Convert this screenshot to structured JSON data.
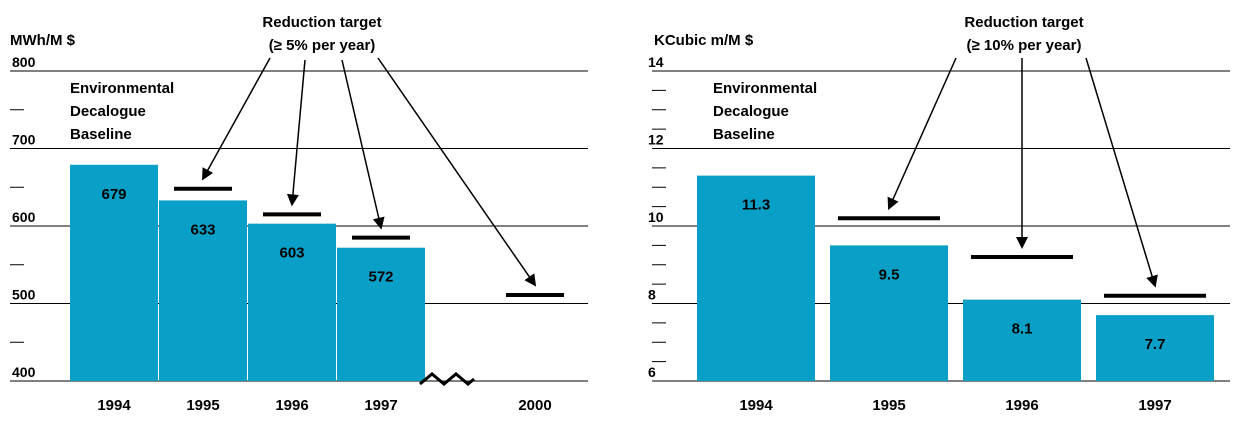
{
  "colors": {
    "bar": "#0a9fc7",
    "line": "#000000",
    "background": "#ffffff"
  },
  "chart_data": [
    {
      "type": "bar",
      "ylabel": "MWh/M $",
      "ylim": [
        400,
        800
      ],
      "yticks": [
        "800",
        "700",
        "600",
        "500",
        "400"
      ],
      "categories": [
        "1994",
        "1995",
        "1996",
        "1997",
        "2000"
      ],
      "values": [
        679,
        633,
        603,
        572,
        null
      ],
      "value_labels": [
        "679",
        "633",
        "603",
        "572",
        ""
      ],
      "targets": [
        null,
        648,
        615,
        585,
        511
      ],
      "baseline_label": [
        "Environmental",
        "Decalogue",
        "Baseline"
      ],
      "annotation": {
        "line1": "Reduction target",
        "line2": "(≥ 5% per year)"
      },
      "axis_break": "between 1997 and 2000",
      "grid": true
    },
    {
      "type": "bar",
      "ylabel": "KCubic m/M $",
      "ylim": [
        6,
        14
      ],
      "yticks": [
        "14",
        "12",
        "10",
        "8",
        "6"
      ],
      "categories": [
        "1994",
        "1995",
        "1996",
        "1997"
      ],
      "values": [
        11.3,
        9.5,
        8.1,
        7.7
      ],
      "value_labels": [
        "11.3",
        "9.5",
        "8.1",
        "7.7"
      ],
      "targets": [
        null,
        10.2,
        9.2,
        8.2
      ],
      "baseline_label": [
        "Environmental",
        "Decalogue",
        "Baseline"
      ],
      "annotation": {
        "line1": "Reduction target",
        "line2": "(≥ 10% per year)"
      },
      "grid": true
    }
  ]
}
